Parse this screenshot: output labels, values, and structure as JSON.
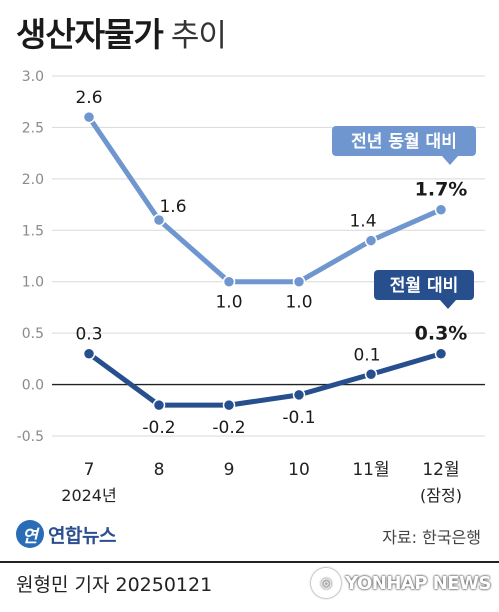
{
  "title": {
    "main": "생산자물가",
    "sub": "추이"
  },
  "chart_data": {
    "type": "line",
    "categories": [
      "7",
      "8",
      "9",
      "10",
      "11월",
      "12월"
    ],
    "category_sublabels": [
      "2024년",
      "",
      "",
      "",
      "",
      "(잠정)"
    ],
    "ylim": [
      -0.5,
      3.0
    ],
    "yticks": [
      "-0.5",
      "0.0",
      "0.5",
      "1.0",
      "1.5",
      "2.0",
      "2.5",
      "3.0"
    ],
    "series": [
      {
        "name": "전년 동월 대비",
        "values": [
          2.6,
          1.6,
          1.0,
          1.0,
          1.4,
          1.7
        ],
        "value_labels": [
          "2.6",
          "1.6",
          "1.0",
          "1.0",
          "1.4",
          "1.7%"
        ],
        "color": "#6f96cf"
      },
      {
        "name": "전월 대비",
        "values": [
          0.3,
          -0.2,
          -0.2,
          -0.1,
          0.1,
          0.3
        ],
        "value_labels": [
          "0.3",
          "-0.2",
          "-0.2",
          "-0.1",
          "0.1",
          "0.3%"
        ],
        "color": "#274f8e"
      }
    ]
  },
  "logo": {
    "mark": "연",
    "text": "연합뉴스"
  },
  "source": "자료: 한국은행",
  "reporter": "원형민 기자  20250121",
  "watermark": "YONHAP NEWS"
}
